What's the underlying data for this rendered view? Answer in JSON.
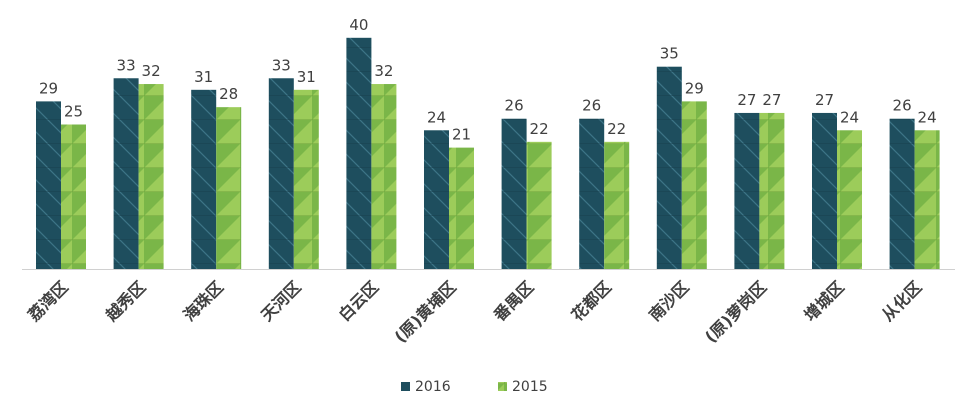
{
  "chart_data": {
    "type": "bar",
    "categories": [
      "荔湾区",
      "越秀区",
      "海珠区",
      "天河区",
      "白云区",
      "(原)黄埔区",
      "番禺区",
      "花都区",
      "南沙区",
      "(原)萝岗区",
      "增城区",
      "从化区"
    ],
    "series": [
      {
        "name": "2016",
        "values": [
          29,
          33,
          31,
          33,
          40,
          24,
          26,
          26,
          35,
          27,
          27,
          26
        ],
        "color": "#1e4e5e"
      },
      {
        "name": "2015",
        "values": [
          25,
          32,
          28,
          31,
          32,
          21,
          22,
          22,
          29,
          27,
          24,
          24
        ],
        "color": "#7ab648"
      }
    ],
    "title": "",
    "xlabel": "",
    "ylabel": "",
    "ylim": [
      0,
      40
    ],
    "grid": false,
    "legend": "bottom",
    "data_labels": true
  }
}
